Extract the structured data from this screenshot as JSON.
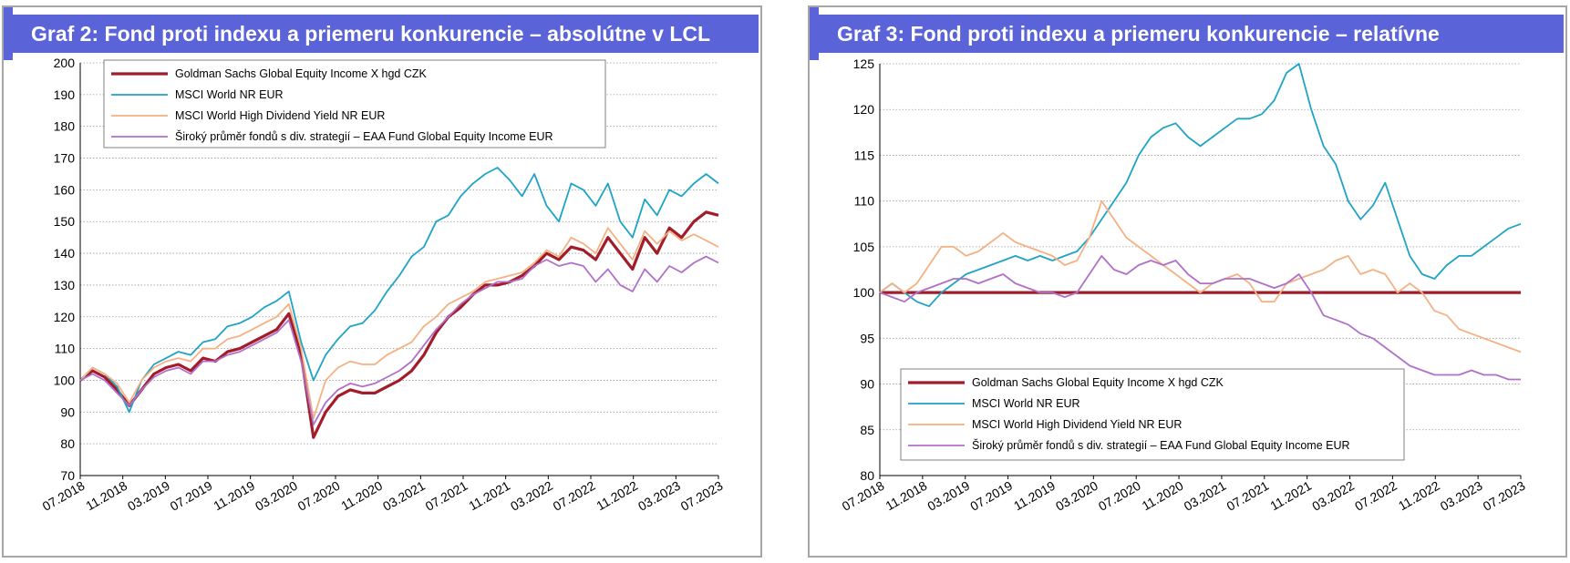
{
  "chart_data": [
    {
      "type": "line",
      "title": "Graf 2: Fond proti indexu a priemeru konkurencie – absolútne v LCL",
      "xlabel": "",
      "ylabel": "",
      "ylim": [
        70,
        200
      ],
      "yticks": [
        70,
        80,
        90,
        100,
        110,
        120,
        130,
        140,
        150,
        160,
        170,
        180,
        190,
        200
      ],
      "xticks": [
        "07.2018",
        "11.2018",
        "03.2019",
        "07.2019",
        "11.2019",
        "03.2020",
        "07.2020",
        "11.2020",
        "03.2021",
        "07.2021",
        "11.2021",
        "03.2022",
        "07.2022",
        "11.2022",
        "03.2023",
        "07.2023"
      ],
      "grid": true,
      "legend_position": "top-left",
      "series": [
        {
          "name": "Goldman Sachs Global Equity Income X hgd CZK",
          "color": "#a31c2a",
          "width": 3.2,
          "values": [
            100,
            103,
            101,
            97,
            92,
            97,
            102,
            104,
            105,
            103,
            107,
            106,
            109,
            110,
            112,
            114,
            116,
            121,
            108,
            82,
            90,
            95,
            97,
            96,
            96,
            98,
            100,
            103,
            108,
            115,
            120,
            123,
            127,
            130,
            130,
            131,
            133,
            136,
            140,
            138,
            142,
            141,
            138,
            145,
            140,
            135,
            145,
            140,
            148,
            145,
            150,
            153,
            152
          ]
        },
        {
          "name": "MSCI World NR EUR",
          "color": "#1fa3c6",
          "width": 1.8,
          "values": [
            100,
            104,
            102,
            98,
            90,
            100,
            105,
            107,
            109,
            108,
            112,
            113,
            117,
            118,
            120,
            123,
            125,
            128,
            112,
            100,
            108,
            113,
            117,
            118,
            122,
            128,
            133,
            139,
            142,
            150,
            152,
            158,
            162,
            165,
            167,
            163,
            158,
            165,
            155,
            150,
            162,
            160,
            155,
            162,
            150,
            145,
            157,
            152,
            160,
            158,
            162,
            165,
            162
          ]
        },
        {
          "name": "MSCI World High Dividend Yield NR EUR",
          "color": "#f4b183",
          "width": 1.8,
          "values": [
            100,
            104,
            102,
            99,
            93,
            100,
            104,
            106,
            107,
            106,
            110,
            110,
            113,
            114,
            116,
            118,
            120,
            124,
            110,
            88,
            100,
            104,
            106,
            105,
            105,
            108,
            110,
            112,
            117,
            120,
            124,
            126,
            128,
            131,
            132,
            133,
            134,
            137,
            141,
            139,
            145,
            143,
            140,
            148,
            143,
            138,
            147,
            143,
            147,
            144,
            146,
            144,
            142
          ]
        },
        {
          "name": "Široký průměr fondů s div. strategií – EAA Fund Global Equity Income EUR",
          "color": "#b070c8",
          "width": 1.8,
          "values": [
            100,
            102,
            100,
            96,
            92,
            97,
            101,
            103,
            104,
            102,
            106,
            106,
            108,
            109,
            111,
            113,
            115,
            119,
            106,
            86,
            93,
            97,
            99,
            98,
            99,
            101,
            103,
            106,
            111,
            116,
            120,
            124,
            127,
            129,
            131,
            131,
            132,
            136,
            138,
            136,
            137,
            136,
            131,
            135,
            130,
            128,
            135,
            131,
            136,
            134,
            137,
            139,
            137
          ]
        }
      ]
    },
    {
      "type": "line",
      "title": "Graf 3: Fond proti indexu a priemeru konkurencie – relatívne",
      "xlabel": "",
      "ylabel": "",
      "ylim": [
        80,
        125
      ],
      "yticks": [
        80,
        85,
        90,
        95,
        100,
        105,
        110,
        115,
        120,
        125
      ],
      "xticks": [
        "07.2018",
        "11.2018",
        "03.2019",
        "07.2019",
        "11.2019",
        "03.2020",
        "07.2020",
        "11.2020",
        "03.2021",
        "07.2021",
        "11.2021",
        "03.2022",
        "07.2022",
        "11.2022",
        "03.2023",
        "07.2023"
      ],
      "grid": true,
      "legend_position": "bottom-center",
      "series": [
        {
          "name": "Goldman Sachs Global Equity Income X hgd CZK",
          "color": "#a31c2a",
          "width": 3.2,
          "values": [
            100,
            100,
            100,
            100,
            100,
            100,
            100,
            100,
            100,
            100,
            100,
            100,
            100,
            100,
            100,
            100,
            100,
            100,
            100,
            100,
            100,
            100,
            100,
            100,
            100,
            100,
            100,
            100,
            100,
            100,
            100,
            100,
            100,
            100,
            100,
            100,
            100,
            100,
            100,
            100,
            100,
            100,
            100,
            100,
            100,
            100,
            100,
            100,
            100,
            100,
            100,
            100,
            100
          ]
        },
        {
          "name": "MSCI World NR EUR",
          "color": "#1fa3c6",
          "width": 1.8,
          "values": [
            100,
            101,
            100,
            99,
            98.5,
            100,
            101,
            102,
            102.5,
            103,
            103.5,
            104,
            103.5,
            104,
            103.5,
            104,
            104.5,
            106,
            108,
            110,
            112,
            115,
            117,
            118,
            118.5,
            117,
            116,
            117,
            118,
            119,
            119,
            119.5,
            121,
            124,
            125,
            120,
            116,
            114,
            110,
            108,
            109.5,
            112,
            108,
            104,
            102,
            101.5,
            103,
            104,
            104,
            105,
            106,
            107,
            107.5
          ]
        },
        {
          "name": "MSCI World High Dividend Yield NR EUR",
          "color": "#f4b183",
          "width": 1.8,
          "values": [
            100,
            101,
            100,
            101,
            103,
            105,
            105,
            104,
            104.5,
            105.5,
            106.5,
            105.5,
            105,
            104.5,
            104,
            103,
            103.5,
            106,
            110,
            108,
            106,
            105,
            104,
            103,
            102,
            101,
            100,
            101,
            101.5,
            102,
            101,
            99,
            99,
            101,
            101.5,
            102,
            102.5,
            103.5,
            104,
            102,
            102.5,
            102,
            100,
            101,
            100,
            98,
            97.5,
            96,
            95.5,
            95,
            94.5,
            94,
            93.5
          ]
        },
        {
          "name": "Široký průměr fondů s div. strategií – EAA Fund Global Equity Income EUR",
          "color": "#b070c8",
          "width": 1.8,
          "values": [
            100,
            99.5,
            99,
            100,
            100.5,
            101,
            101.5,
            101.5,
            101,
            101.5,
            102,
            101,
            100.5,
            100,
            100,
            99.5,
            100,
            102,
            104,
            102.5,
            102,
            103,
            103.5,
            103,
            103.5,
            102,
            101,
            101,
            101.5,
            101.5,
            101.5,
            101,
            100.5,
            101,
            102,
            100,
            97.5,
            97,
            96.5,
            95.5,
            95,
            94,
            93,
            92,
            91.5,
            91,
            91,
            91,
            91.5,
            91,
            91,
            90.5,
            90.5
          ]
        }
      ]
    }
  ]
}
